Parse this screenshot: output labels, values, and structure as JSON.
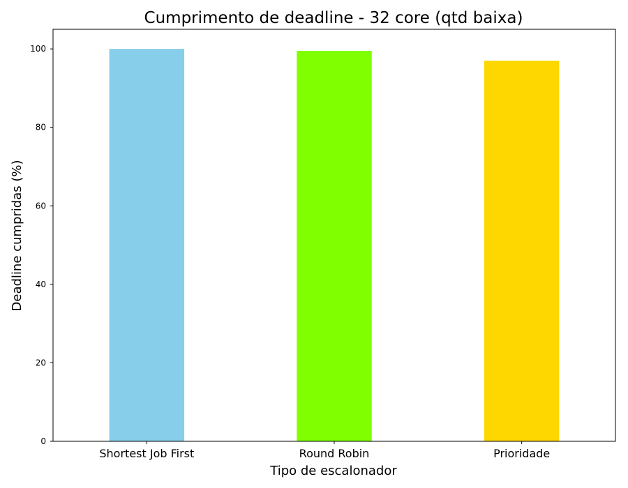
{
  "chart_data": {
    "type": "bar",
    "title": "Cumprimento de deadline - 32 core (qtd baixa)",
    "xlabel": "Tipo de escalonador",
    "ylabel": "Deadline cumpridas (%)",
    "categories": [
      "Shortest Job First",
      "Round Robin",
      "Prioridade"
    ],
    "values": [
      100.0,
      99.5,
      97.0
    ],
    "colors": [
      "#87CEEB",
      "#7FFF00",
      "#FFD700"
    ],
    "ylim": [
      0,
      105
    ],
    "yticks": [
      0,
      20,
      40,
      60,
      80,
      100
    ],
    "grid": false,
    "legend": "none"
  }
}
